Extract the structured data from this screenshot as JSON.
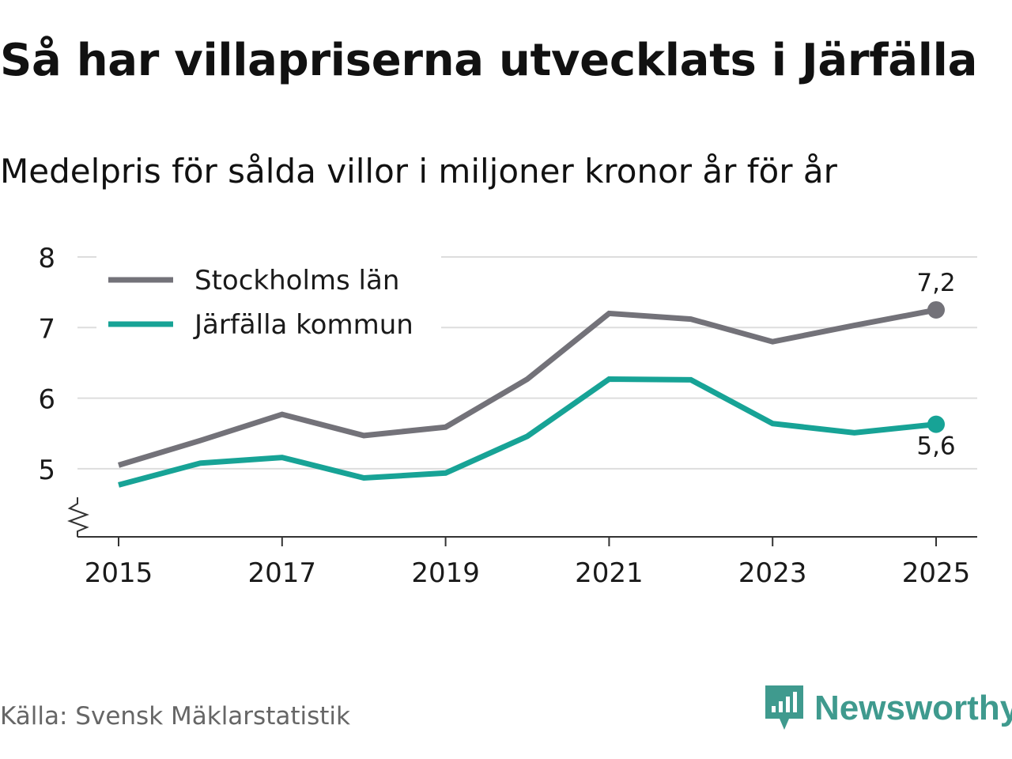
{
  "title": "Så har villapriserna utvecklats i Järfälla",
  "subtitle": "Medelpris för sålda villor i miljoner kronor år för år",
  "source": "Källa: Svensk Mäklarstatistik",
  "brand": {
    "name": "Newsworthy",
    "icon": "newsworthy-logo-icon",
    "color": "#3f9a8e"
  },
  "colors": {
    "stockholm": "#737279",
    "jarfalla": "#17a396",
    "grid": "#dddddd",
    "axis": "#333333"
  },
  "chart_data": {
    "type": "line",
    "title": "Så har villapriserna utvecklats i Järfälla",
    "subtitle": "Medelpris för sålda villor i miljoner kronor år för år",
    "xlabel": "",
    "ylabel": "",
    "x": [
      2015,
      2016,
      2017,
      2018,
      2019,
      2020,
      2021,
      2022,
      2023,
      2024,
      2025
    ],
    "x_ticks": [
      2015,
      2017,
      2019,
      2021,
      2023,
      2025
    ],
    "x_tick_labels": [
      "2015",
      "2017",
      "2019",
      "2021",
      "2023",
      "2025"
    ],
    "y_ticks": [
      5,
      6,
      7,
      8
    ],
    "y_tick_labels": [
      "5",
      "6",
      "7",
      "8"
    ],
    "ylim": [
      4.05,
      8.0
    ],
    "y_axis_break": true,
    "grid": true,
    "legend_position": "top-left",
    "series": [
      {
        "name": "Stockholms län",
        "color": "#737279",
        "values": [
          5.05,
          5.4,
          5.77,
          5.47,
          5.59,
          6.27,
          7.2,
          7.12,
          6.8,
          7.03,
          7.25
        ],
        "end_label": "7,2"
      },
      {
        "name": "Järfälla kommun",
        "color": "#17a396",
        "values": [
          4.77,
          5.08,
          5.16,
          4.87,
          4.94,
          5.46,
          6.27,
          6.26,
          5.64,
          5.51,
          5.63
        ],
        "end_label": "5,6"
      }
    ]
  }
}
